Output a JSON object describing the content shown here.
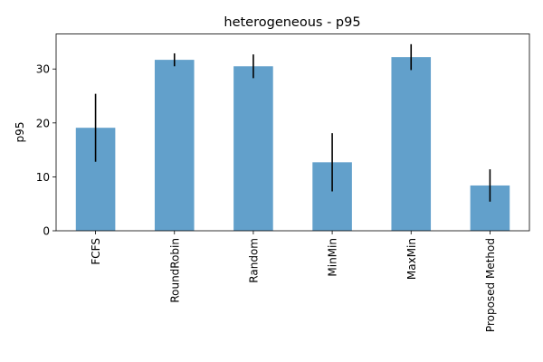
{
  "chart_data": {
    "type": "bar",
    "title": "heterogeneous - p95",
    "xlabel": "",
    "ylabel": "p95",
    "categories": [
      "FCFS",
      "RoundRobin",
      "Random",
      "MinMin",
      "MaxMin",
      "Proposed Method"
    ],
    "values": [
      19.1,
      31.7,
      30.5,
      12.7,
      32.2,
      8.4
    ],
    "error": [
      6.3,
      1.2,
      2.2,
      5.4,
      2.4,
      3.0
    ],
    "ylim": [
      0,
      36.5
    ],
    "yticks": [
      0,
      10,
      20,
      30
    ],
    "ytick_labels": [
      "0",
      "10",
      "20",
      "30"
    ],
    "bar_color": "#62a0cb",
    "error_color": "#000000",
    "grid": false,
    "legend": false
  }
}
